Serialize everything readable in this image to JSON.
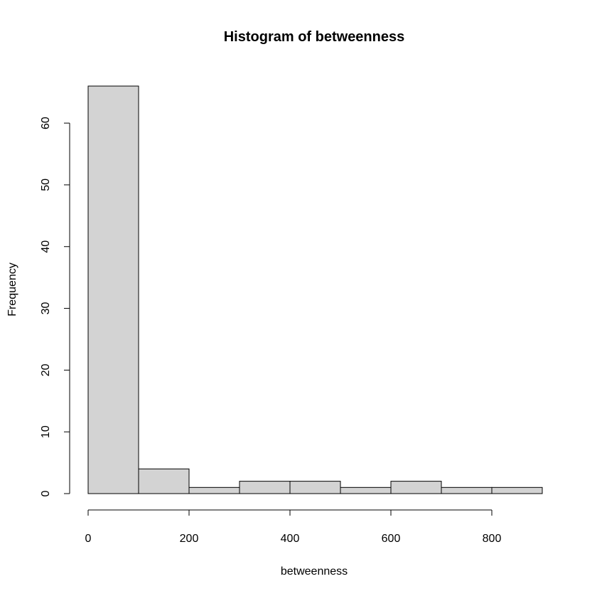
{
  "chart_data": {
    "type": "bar",
    "title": "Histogram of betweenness",
    "xlabel": "betweenness",
    "ylabel": "Frequency",
    "bins": [
      {
        "start": 0,
        "end": 100,
        "count": 66
      },
      {
        "start": 100,
        "end": 200,
        "count": 4
      },
      {
        "start": 200,
        "end": 300,
        "count": 1
      },
      {
        "start": 300,
        "end": 400,
        "count": 2
      },
      {
        "start": 400,
        "end": 500,
        "count": 2
      },
      {
        "start": 500,
        "end": 600,
        "count": 1
      },
      {
        "start": 600,
        "end": 700,
        "count": 2
      },
      {
        "start": 700,
        "end": 800,
        "count": 1
      },
      {
        "start": 800,
        "end": 900,
        "count": 1
      }
    ],
    "xlim": [
      0,
      900
    ],
    "ylim": [
      0,
      66
    ],
    "x_ticks": [
      0,
      200,
      400,
      600,
      800
    ],
    "y_ticks": [
      0,
      10,
      20,
      30,
      40,
      50,
      60
    ],
    "bar_fill": "#d3d3d3",
    "bar_stroke": "#000000",
    "grid": false
  }
}
